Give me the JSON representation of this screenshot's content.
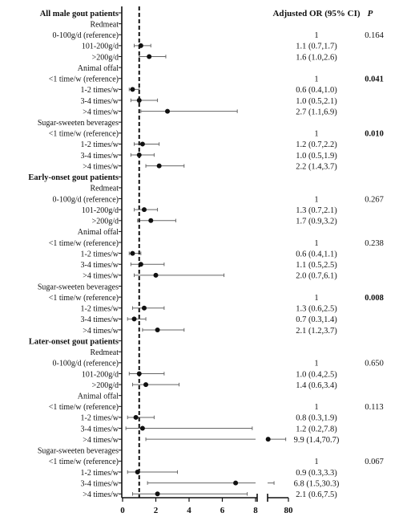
{
  "chart_data": {
    "type": "forest",
    "header_or": "Adjusted OR (95% CI)",
    "header_p": "P",
    "x_ticks_left": [
      "0",
      "2",
      "4",
      "6",
      "8"
    ],
    "x_ticks_right": [
      "80"
    ],
    "reference_line_x": 1,
    "rows": [
      {
        "label": "All male gout patients",
        "kind": "group"
      },
      {
        "label": "Redmeat",
        "kind": "category"
      },
      {
        "label": "0-100g/d (reference)",
        "kind": "ref",
        "or_text": "1",
        "p": "0.164"
      },
      {
        "label": "101-200g/d",
        "kind": "data",
        "or": 1.1,
        "lo": 0.7,
        "hi": 1.7,
        "or_text": "1.1 (0.7,1.7)"
      },
      {
        "label": ">200g/d",
        "kind": "data",
        "or": 1.6,
        "lo": 1.0,
        "hi": 2.6,
        "or_text": "1.6 (1.0,2.6)"
      },
      {
        "label": "Animal offal",
        "kind": "category"
      },
      {
        "label": "<1 time/w (reference)",
        "kind": "ref",
        "or_text": "1",
        "p": "0.041",
        "p_bold": true
      },
      {
        "label": "1-2 times/w",
        "kind": "data",
        "or": 0.6,
        "lo": 0.4,
        "hi": 1.0,
        "or_text": "0.6 (0.4,1.0)"
      },
      {
        "label": "3-4 times/w",
        "kind": "data",
        "or": 1.0,
        "lo": 0.5,
        "hi": 2.1,
        "or_text": "1.0 (0.5,2.1)"
      },
      {
        "label": ">4 times/w",
        "kind": "data",
        "or": 2.7,
        "lo": 1.1,
        "hi": 6.9,
        "or_text": "2.7 (1.1,6.9)"
      },
      {
        "label": "Sugar-sweeten beverages",
        "kind": "category"
      },
      {
        "label": "<1 time/w (reference)",
        "kind": "ref",
        "or_text": "1",
        "p": "0.010",
        "p_bold": true
      },
      {
        "label": "1-2 times/w",
        "kind": "data",
        "or": 1.2,
        "lo": 0.7,
        "hi": 2.2,
        "or_text": "1.2 (0.7,2.2)"
      },
      {
        "label": "3-4 times/w",
        "kind": "data",
        "or": 1.0,
        "lo": 0.5,
        "hi": 1.9,
        "or_text": "1.0 (0.5,1.9)"
      },
      {
        "label": ">4 times/w",
        "kind": "data",
        "or": 2.2,
        "lo": 1.4,
        "hi": 3.7,
        "or_text": "2.2 (1.4,3.7)"
      },
      {
        "label": "Early-onset gout patients",
        "kind": "group"
      },
      {
        "label": "Redmeat",
        "kind": "category"
      },
      {
        "label": "0-100g/d (reference)",
        "kind": "ref",
        "or_text": "1",
        "p": "0.267"
      },
      {
        "label": "101-200g/d",
        "kind": "data",
        "or": 1.3,
        "lo": 0.7,
        "hi": 2.1,
        "or_text": "1.3 (0.7,2.1)"
      },
      {
        "label": ">200g/d",
        "kind": "data",
        "or": 1.7,
        "lo": 0.9,
        "hi": 3.2,
        "or_text": "1.7 (0.9,3.2)"
      },
      {
        "label": "Animal offal",
        "kind": "category"
      },
      {
        "label": "<1 time/w (reference)",
        "kind": "ref",
        "or_text": "1",
        "p": "0.238"
      },
      {
        "label": "1-2 times/w",
        "kind": "data",
        "or": 0.6,
        "lo": 0.4,
        "hi": 1.1,
        "or_text": "0.6 (0.4,1.1)"
      },
      {
        "label": "3-4 times/w",
        "kind": "data",
        "or": 1.1,
        "lo": 0.5,
        "hi": 2.5,
        "or_text": "1.1 (0.5,2.5)"
      },
      {
        "label": ">4 times/w",
        "kind": "data",
        "or": 2.0,
        "lo": 0.7,
        "hi": 6.1,
        "or_text": "2.0 (0.7,6.1)"
      },
      {
        "label": "Sugar-sweeten beverages",
        "kind": "category"
      },
      {
        "label": "<1 time/w (reference)",
        "kind": "ref",
        "or_text": "1",
        "p": "0.008",
        "p_bold": true
      },
      {
        "label": "1-2 times/w",
        "kind": "data",
        "or": 1.3,
        "lo": 0.6,
        "hi": 2.5,
        "or_text": "1.3 (0.6,2.5)"
      },
      {
        "label": "3-4 times/w",
        "kind": "data",
        "or": 0.7,
        "lo": 0.3,
        "hi": 1.4,
        "or_text": "0.7 (0.3,1.4)"
      },
      {
        "label": ">4 times/w",
        "kind": "data",
        "or": 2.1,
        "lo": 1.2,
        "hi": 3.7,
        "or_text": "2.1 (1.2,3.7)"
      },
      {
        "label": "Later-onset gout patients",
        "kind": "group"
      },
      {
        "label": "Redmeat",
        "kind": "category"
      },
      {
        "label": "0-100g/d (reference)",
        "kind": "ref",
        "or_text": "1",
        "p": "0.650"
      },
      {
        "label": "101-200g/d",
        "kind": "data",
        "or": 1.0,
        "lo": 0.4,
        "hi": 2.5,
        "or_text": "1.0 (0.4,2.5)"
      },
      {
        "label": ">200g/d",
        "kind": "data",
        "or": 1.4,
        "lo": 0.6,
        "hi": 3.4,
        "or_text": "1.4 (0.6,3.4)"
      },
      {
        "label": "Animal offal",
        "kind": "category"
      },
      {
        "label": "<1 time/w (reference)",
        "kind": "ref",
        "or_text": "1",
        "p": "0.113"
      },
      {
        "label": "1-2 times/w",
        "kind": "data",
        "or": 0.8,
        "lo": 0.3,
        "hi": 1.9,
        "or_text": "0.8 (0.3,1.9)"
      },
      {
        "label": "3-4 times/w",
        "kind": "data",
        "or": 1.2,
        "lo": 0.2,
        "hi": 7.8,
        "or_text": "1.2 (0.2,7.8)"
      },
      {
        "label": ">4 times/w",
        "kind": "data",
        "or": 9.9,
        "lo": 1.4,
        "hi": 70.7,
        "or_text": "9.9 (1.4,70.7)"
      },
      {
        "label": "Sugar-sweeten beverages",
        "kind": "category"
      },
      {
        "label": "<1 time/w (reference)",
        "kind": "ref",
        "or_text": "1",
        "p": "0.067"
      },
      {
        "label": "1-2 times/w",
        "kind": "data",
        "or": 0.9,
        "lo": 0.3,
        "hi": 3.3,
        "or_text": "0.9 (0.3,3.3)"
      },
      {
        "label": "3-4 times/w",
        "kind": "data",
        "or": 6.8,
        "lo": 1.5,
        "hi": 30.3,
        "or_text": "6.8 (1.5,30.3)"
      },
      {
        "label": ">4 times/w",
        "kind": "data",
        "or": 2.1,
        "lo": 0.6,
        "hi": 7.5,
        "or_text": "2.1 (0.6,7.5)"
      }
    ]
  }
}
